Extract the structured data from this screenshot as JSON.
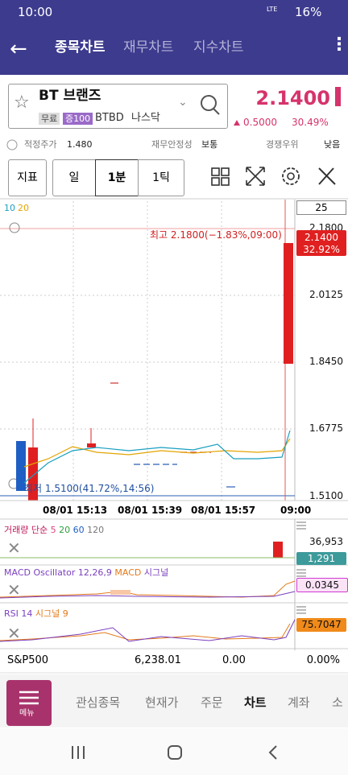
{
  "status_bar": {
    "time": "10:00",
    "network": "LTE",
    "battery": "16%"
  },
  "header": {
    "tabs": [
      "종목차트",
      "재무차트",
      "지수차트"
    ]
  },
  "stock": {
    "name": "BT 브랜즈",
    "badges": [
      "무료",
      "증100"
    ],
    "ticker": "BTBD",
    "exchange": "나스닥",
    "price": "2.1400",
    "change": "0.5000",
    "change_pct": "30.49%"
  },
  "info_row": [
    {
      "label": "적정주가",
      "value": "1.480"
    },
    {
      "label": "재무안정성",
      "value": "보통"
    },
    {
      "label": "경쟁우위",
      "value": "낮음"
    }
  ],
  "toolbar": {
    "indicator": "지표",
    "periods": [
      "일",
      "1분",
      "1틱"
    ]
  },
  "price_chart": {
    "ma_legend": [
      "10",
      "20"
    ],
    "count_box": "25",
    "axis_labels": [
      "2.1800",
      "2.0125",
      "1.8450",
      "1.6775",
      "1.5100"
    ],
    "current_tag": {
      "price": "2.1400",
      "pct": "32.92%"
    },
    "high_note": "최고 2.1800(−1.83%,09:00)",
    "low_note": "최저 1.5100(41.72%,14:56)",
    "time_labels": [
      "08/01 15:13",
      "08/01 15:39",
      "08/01 15:57",
      "09:00"
    ]
  },
  "volume_panel": {
    "title": "거래량 단순",
    "periods": [
      "5",
      "20",
      "60",
      "120"
    ],
    "max_label": "36,953",
    "current_tag": "1,291"
  },
  "macd_panel": {
    "title": "MACD Oscillator 12,26,9",
    "line": "MACD",
    "signal": "시그널",
    "current_tag": "0.0345"
  },
  "rsi_panel": {
    "title": "RSI 14",
    "signal": "시그널 9",
    "current_tag": "75.7047"
  },
  "index_row": {
    "name": "S&P500",
    "value": "6,238.01",
    "change": "0.00",
    "change_pct": "0.00%"
  },
  "bottom_nav": {
    "menu": "메뉴",
    "items": [
      "관심종목",
      "현재가",
      "주문",
      "차트",
      "계좌",
      "소"
    ]
  }
}
